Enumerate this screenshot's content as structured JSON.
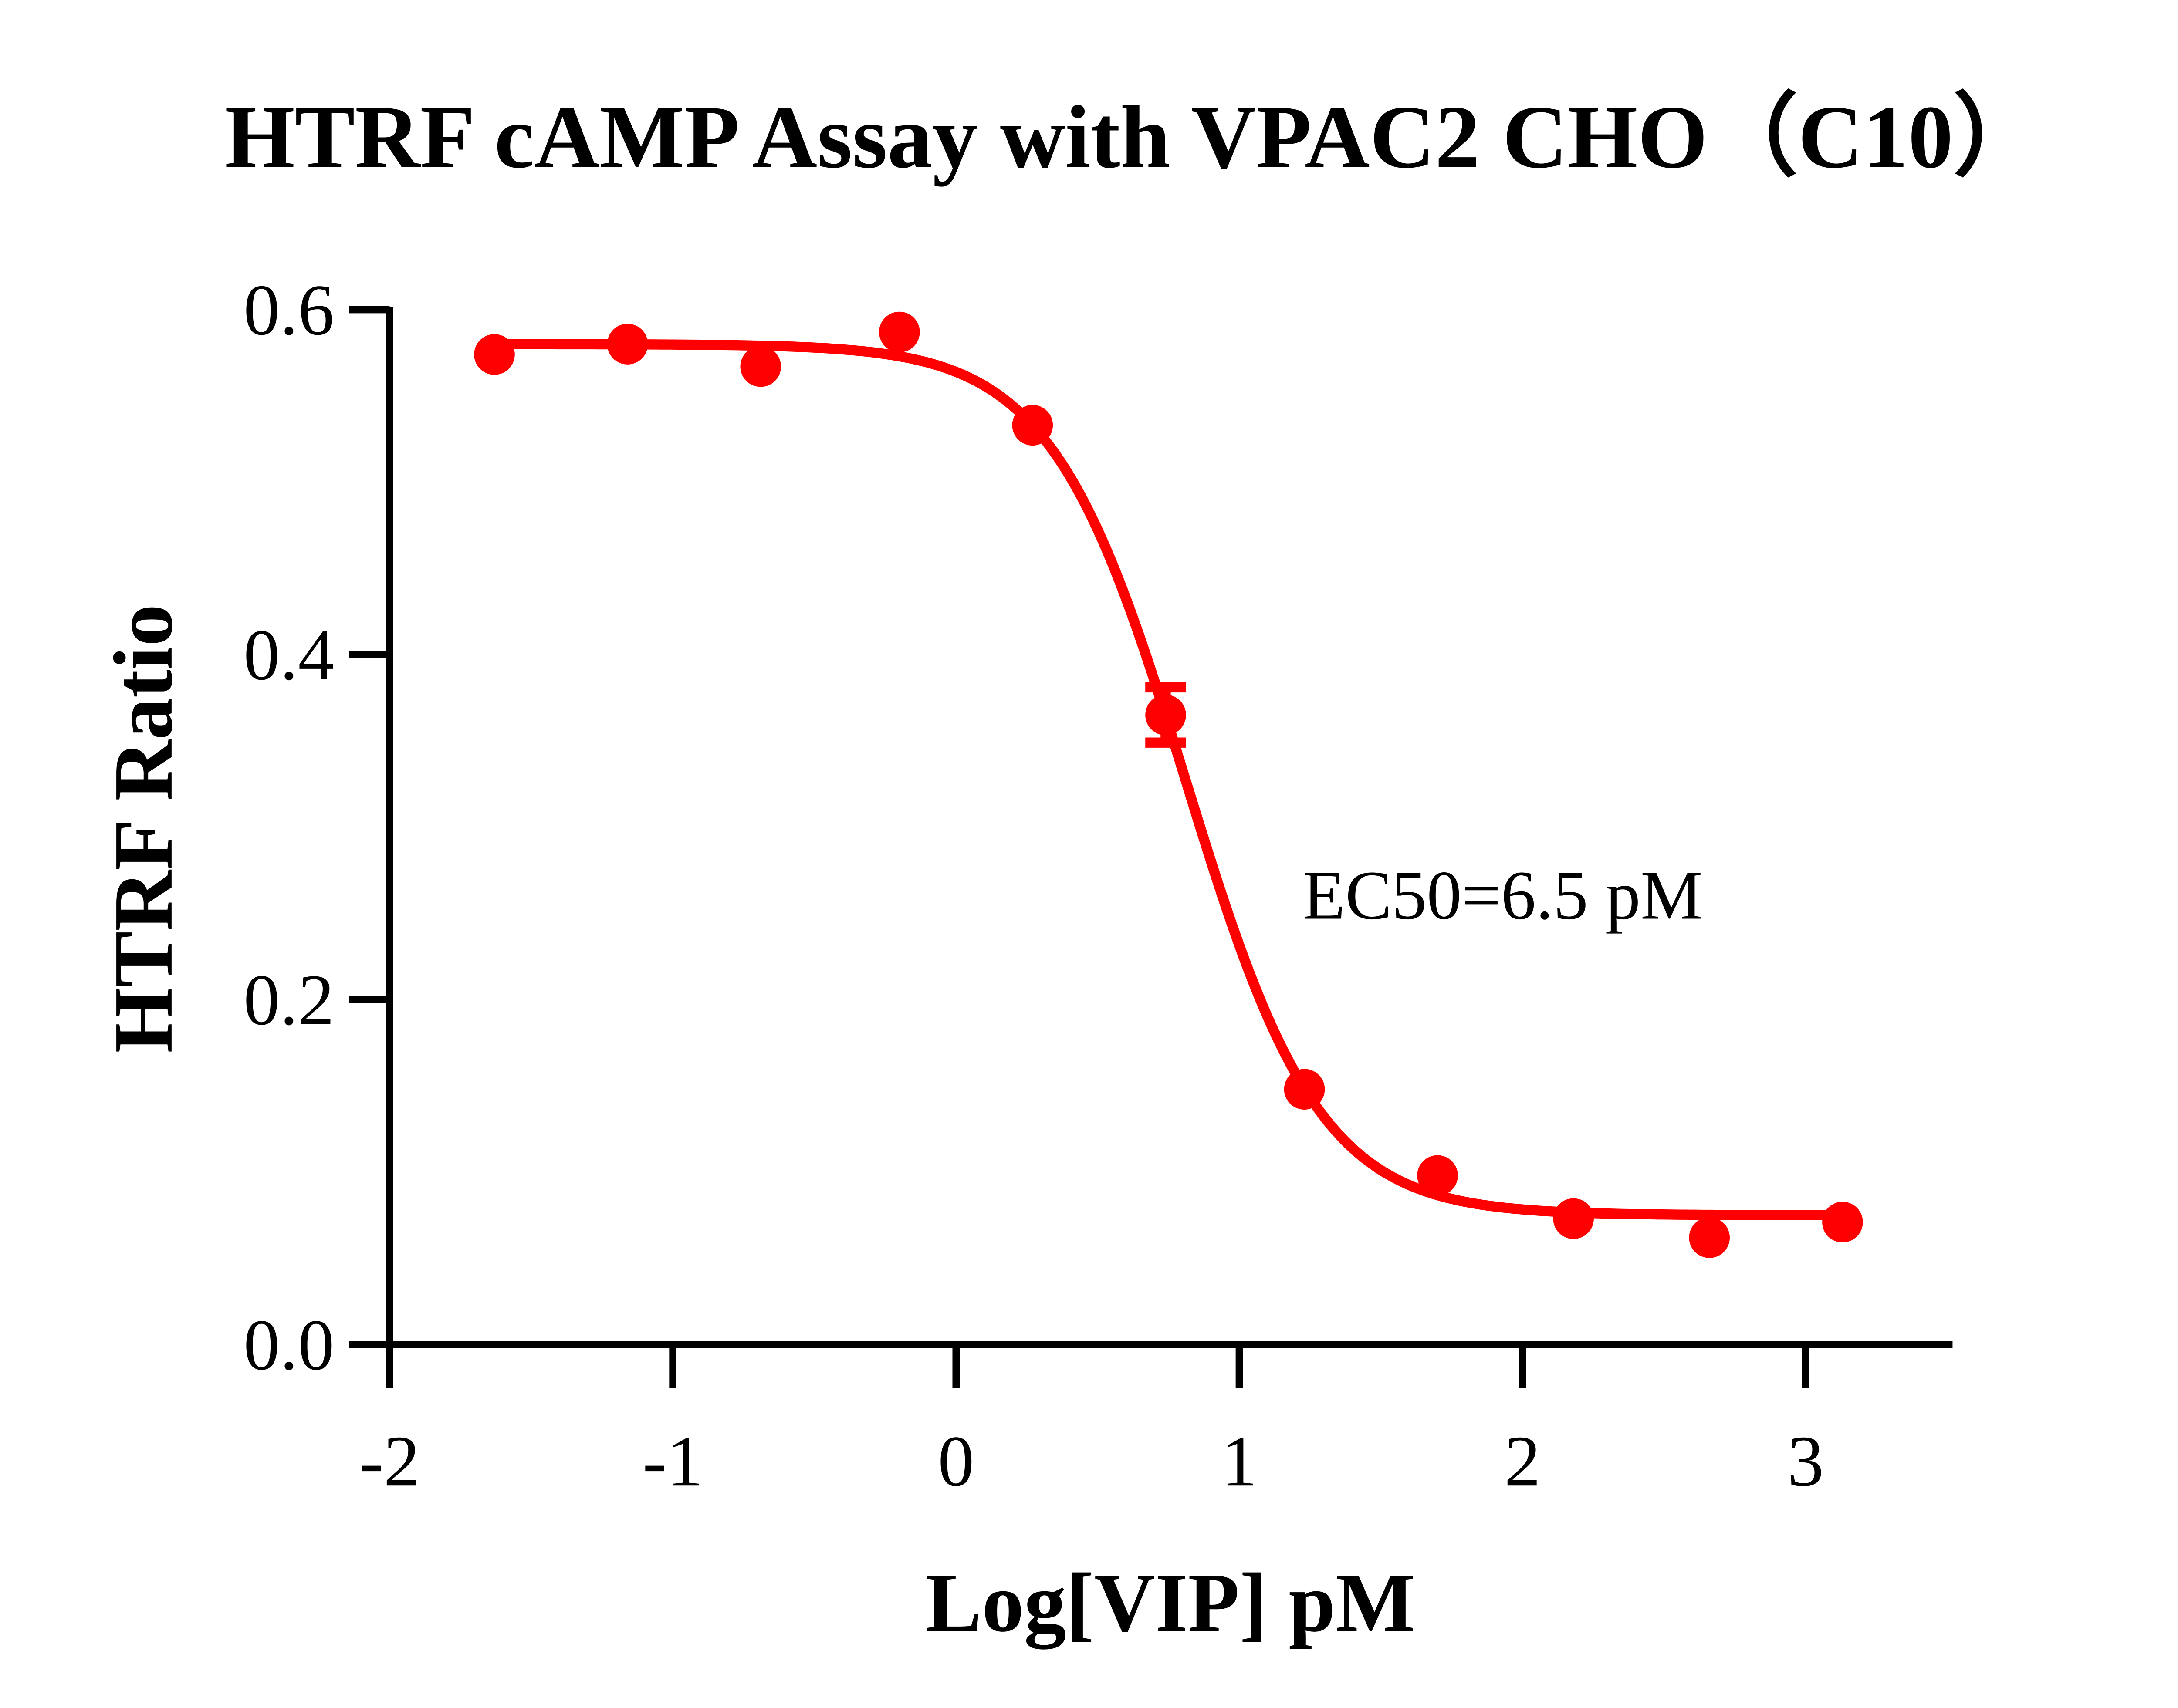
{
  "chart_data": {
    "type": "scatter",
    "title": "HTRF cAMP Assay with VPAC2 CHO（C10）",
    "xlabel": "Log[VIP] pM",
    "ylabel": "HTRF Ratio",
    "xlim": [
      -2,
      3.5
    ],
    "ylim": [
      0,
      0.6
    ],
    "xticks": [
      -2,
      -1,
      0,
      1,
      2,
      3
    ],
    "xtick_labels": [
      "-2",
      "-1",
      "0",
      "1",
      "2",
      "3"
    ],
    "yticks": [
      0,
      0.2,
      0.4,
      0.6
    ],
    "ytick_labels": [
      "0.0",
      "0.2",
      "0.4",
      "0.6"
    ],
    "grid": false,
    "color": "#ff0000",
    "points": [
      {
        "x": -1.63,
        "y": 0.574,
        "err": 0
      },
      {
        "x": -1.16,
        "y": 0.58,
        "err": 0
      },
      {
        "x": -0.69,
        "y": 0.567,
        "err": 0
      },
      {
        "x": -0.2,
        "y": 0.587,
        "err": 0
      },
      {
        "x": 0.27,
        "y": 0.533,
        "err": 0
      },
      {
        "x": 0.74,
        "y": 0.365,
        "err": 0.016
      },
      {
        "x": 1.23,
        "y": 0.148,
        "err": 0
      },
      {
        "x": 1.7,
        "y": 0.098,
        "err": 0
      },
      {
        "x": 2.18,
        "y": 0.073,
        "err": 0
      },
      {
        "x": 2.66,
        "y": 0.062,
        "err": 0
      },
      {
        "x": 3.13,
        "y": 0.071,
        "err": 0
      }
    ],
    "fit": {
      "model": "4PL",
      "top": 0.58,
      "bottom": 0.075,
      "logEC50": 0.81,
      "hill": 1.83,
      "x_range": [
        -1.63,
        3.13
      ]
    },
    "annotation": "EC50=6.5 pM"
  }
}
